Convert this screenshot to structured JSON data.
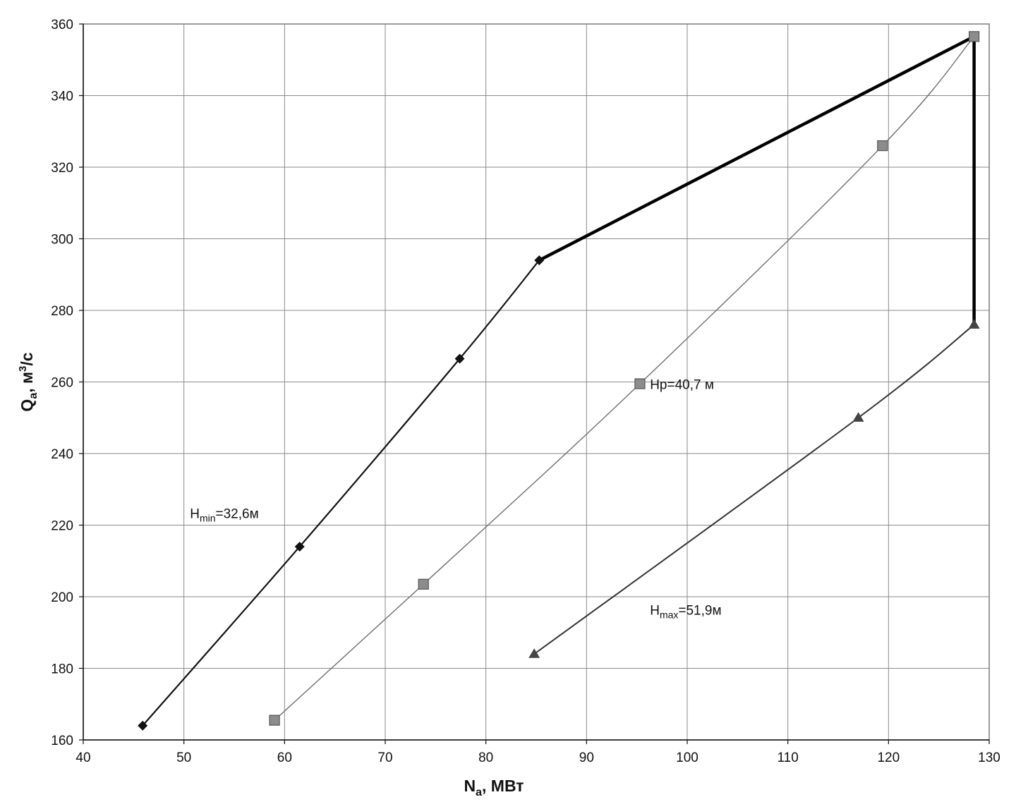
{
  "chart_data": {
    "type": "line",
    "xlabel": {
      "main": "N",
      "sub": "a",
      "rest": ", МВт"
    },
    "ylabel": {
      "main": "Q",
      "sub": "a",
      "rest1": ", м",
      "sup": "3",
      "rest2": "/с"
    },
    "xlim": [
      40,
      130
    ],
    "ylim": [
      160,
      360
    ],
    "x_ticks": [
      40,
      50,
      60,
      70,
      80,
      90,
      100,
      110,
      120,
      130
    ],
    "y_ticks": [
      160,
      180,
      200,
      220,
      240,
      260,
      280,
      300,
      320,
      340,
      360
    ],
    "grid": true,
    "series": [
      {
        "key": "hmin",
        "marker": "diamond",
        "color": "#111111",
        "points": [
          {
            "x": 45.9,
            "y": 164
          },
          {
            "x": 61.5,
            "y": 214
          },
          {
            "x": 77.4,
            "y": 266.5
          },
          {
            "x": 85.3,
            "y": 294
          }
        ]
      },
      {
        "key": "hp",
        "marker": "square",
        "color": "#6e6e6e",
        "points": [
          {
            "x": 59.0,
            "y": 165.5
          },
          {
            "x": 73.8,
            "y": 203.5
          },
          {
            "x": 95.3,
            "y": 259.5
          },
          {
            "x": 119.4,
            "y": 326
          },
          {
            "x": 128.5,
            "y": 356.5
          }
        ]
      },
      {
        "key": "hmax",
        "marker": "triangle",
        "color": "#333333",
        "points": [
          {
            "x": 84.8,
            "y": 184
          },
          {
            "x": 117.0,
            "y": 250
          },
          {
            "x": 128.5,
            "y": 276
          }
        ]
      },
      {
        "key": "envelope",
        "marker": "none",
        "color": "#000000",
        "points": [
          {
            "x": 85.3,
            "y": 294
          },
          {
            "x": 128.5,
            "y": 356.5
          },
          {
            "x": 128.5,
            "y": 276
          }
        ]
      }
    ],
    "annotations": [
      {
        "key": "hmin",
        "main": "H",
        "sub": "min",
        "rest": "=32,6м",
        "x": 50.6,
        "y": 222
      },
      {
        "key": "hp",
        "main": "Hp=40,7 м",
        "sub": "",
        "rest": "",
        "x": 96.3,
        "y": 258
      },
      {
        "key": "hmax",
        "main": "H",
        "sub": "max",
        "rest": "=51,9м",
        "x": 96.3,
        "y": 195
      }
    ]
  }
}
